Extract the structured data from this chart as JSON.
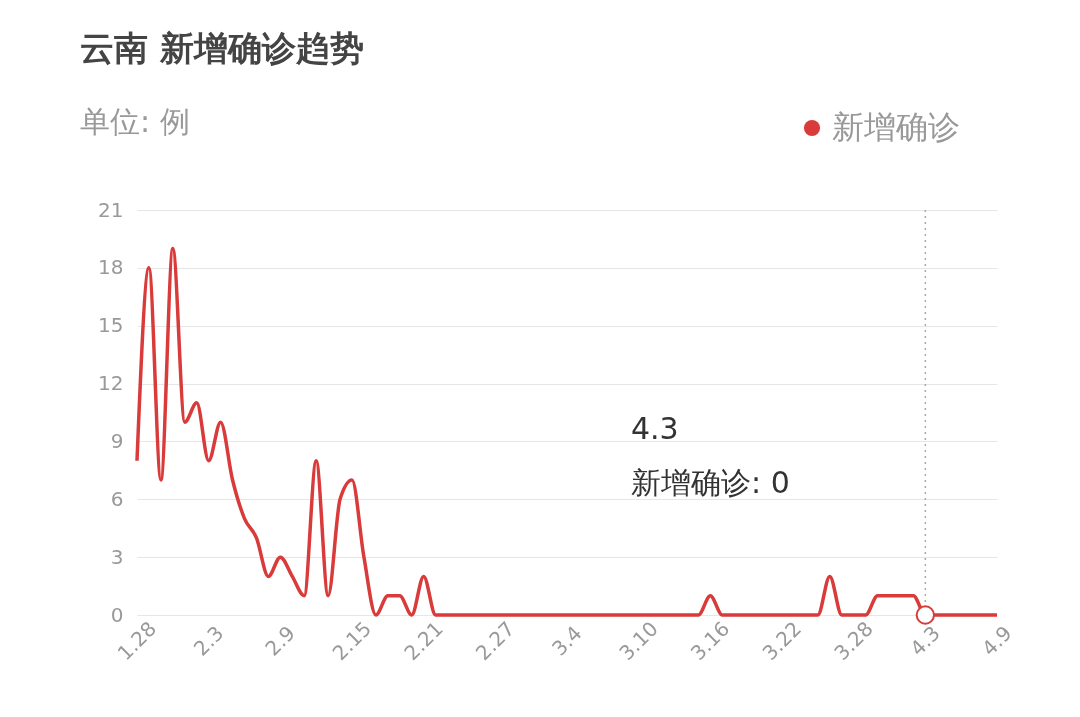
{
  "chart_data": {
    "type": "line",
    "title": "云南 新增确诊趋势",
    "ylabel": "单位: 例",
    "categories": [
      "1.28",
      null,
      null,
      null,
      null,
      null,
      "2.3",
      null,
      null,
      null,
      null,
      null,
      "2.9",
      null,
      null,
      null,
      null,
      null,
      "2.15",
      null,
      null,
      null,
      null,
      null,
      "2.21",
      null,
      null,
      null,
      null,
      null,
      "2.27",
      null,
      null,
      null,
      null,
      null,
      "3.4",
      null,
      null,
      null,
      null,
      null,
      "3.10",
      null,
      null,
      null,
      null,
      null,
      "3.16",
      null,
      null,
      null,
      null,
      null,
      "3.22",
      null,
      null,
      null,
      null,
      null,
      "3.28",
      null,
      null,
      null,
      null,
      null,
      "4.3",
      null,
      null,
      null,
      null,
      null,
      "4.9"
    ],
    "series": [
      {
        "name": "新增确诊",
        "color": "#d93a3a",
        "values": [
          8,
          18,
          7,
          19,
          10,
          11,
          8,
          10,
          7,
          5,
          4,
          2,
          3,
          2,
          1,
          8,
          1,
          6,
          7,
          3,
          0,
          1,
          1,
          0,
          2,
          0,
          0,
          0,
          0,
          0,
          0,
          0,
          0,
          0,
          0,
          0,
          0,
          0,
          0,
          0,
          0,
          0,
          0,
          0,
          0,
          0,
          0,
          0,
          1,
          0,
          0,
          0,
          0,
          0,
          0,
          0,
          0,
          0,
          2,
          0,
          0,
          0,
          1,
          1,
          1,
          1,
          0,
          0,
          0,
          0,
          0,
          0,
          0
        ]
      }
    ],
    "ylim": [
      0,
      21
    ],
    "yticks": [
      0,
      3,
      6,
      9,
      12,
      15,
      18,
      21
    ],
    "grid": "y",
    "legend": "top right",
    "marker": "none",
    "line_style": "solid",
    "ref_lines": [
      {
        "axis": "x",
        "value": "4.3",
        "color": "#aaaaaa",
        "line_style": "dotted"
      }
    ],
    "annotations": [
      "4.3\n新增确诊: 0"
    ]
  }
}
